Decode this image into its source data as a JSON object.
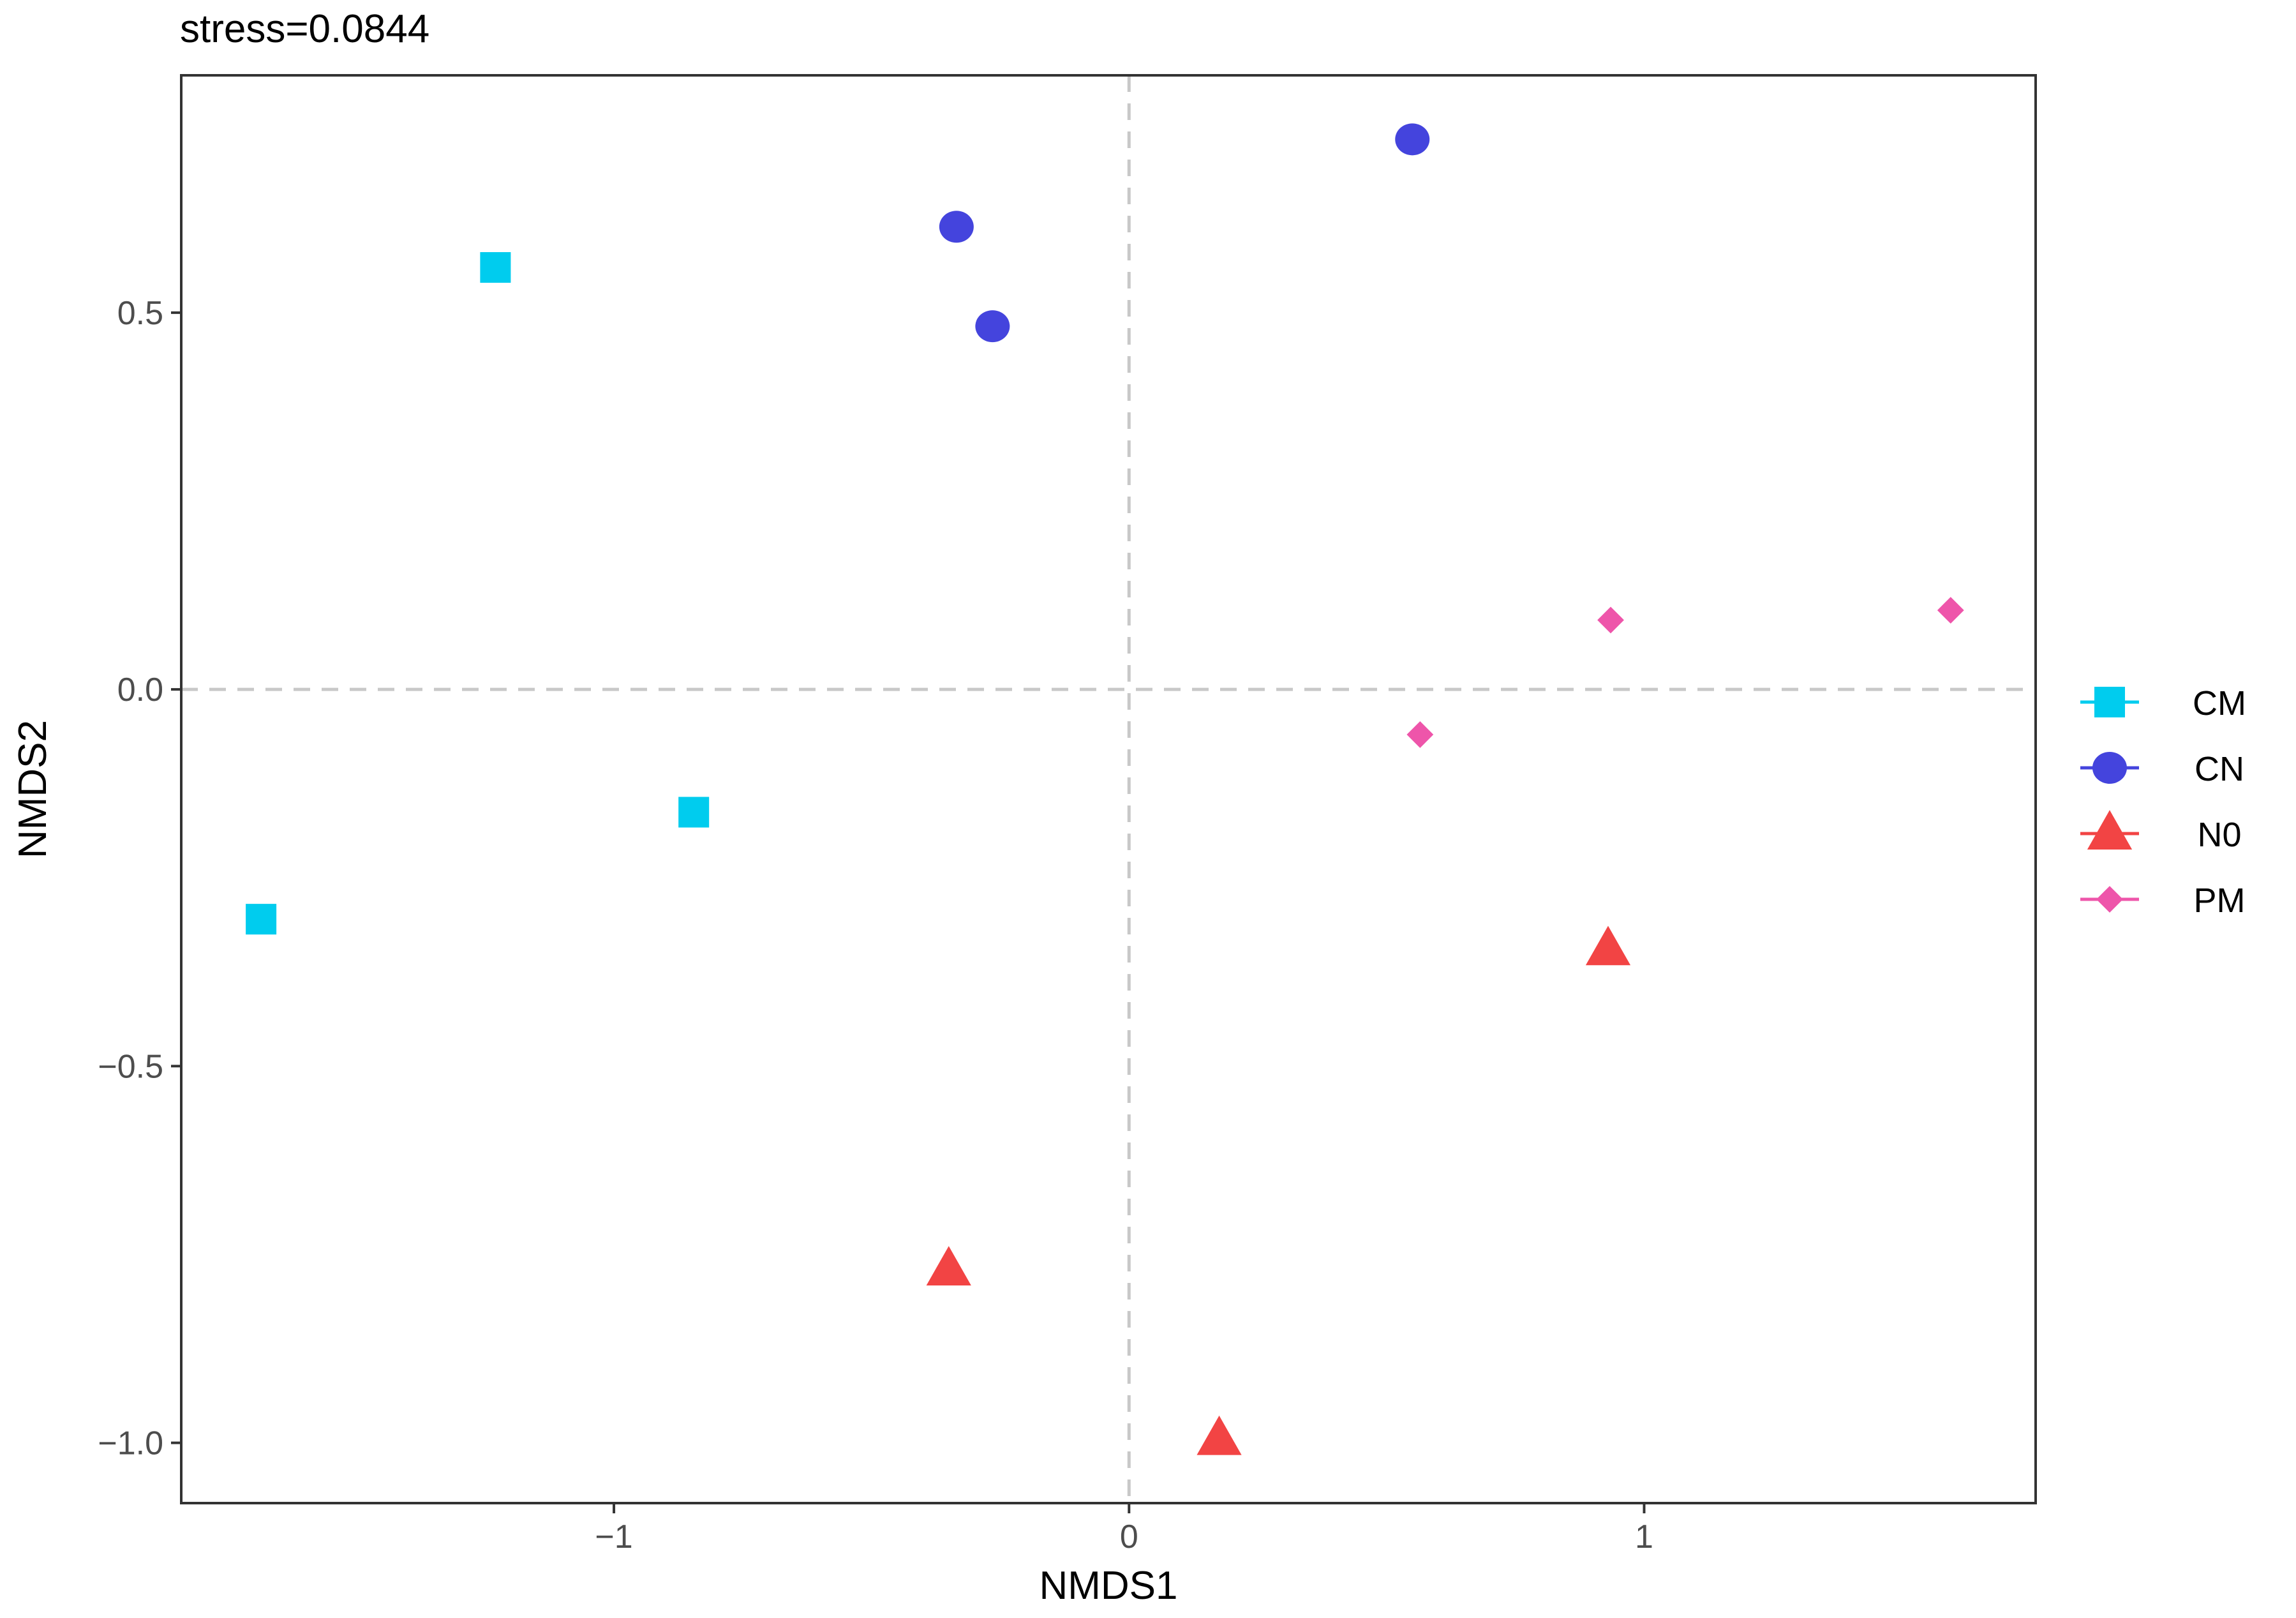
{
  "chart_data": {
    "type": "scatter",
    "title": "stress=0.0844",
    "xlabel": "NMDS1",
    "ylabel": "NMDS2",
    "xlim": [
      -1.84,
      1.76
    ],
    "ylim": [
      -1.08,
      0.815
    ],
    "x_ticks": [
      -1,
      0,
      1
    ],
    "x_tick_labels": [
      "−1",
      "0",
      "1"
    ],
    "y_ticks": [
      -1.0,
      -0.5,
      0.0,
      0.5
    ],
    "y_tick_labels": [
      "−1.0",
      "−0.5",
      "0.0",
      "0.5"
    ],
    "grid": false,
    "reference_lines": {
      "x": 0,
      "y": 0,
      "style": "dashed"
    },
    "legend_position": "right",
    "series": [
      {
        "name": "CM",
        "marker": "square",
        "color": "#00CCEE",
        "x": [
          -1.685,
          -1.23,
          -0.845
        ],
        "y": [
          -0.305,
          0.56,
          -0.163
        ]
      },
      {
        "name": "CN",
        "marker": "circle",
        "color": "#4444DD",
        "x": [
          -0.335,
          -0.265,
          0.55
        ],
        "y": [
          0.614,
          0.482,
          0.73
        ]
      },
      {
        "name": "N0",
        "marker": "triangle",
        "color": "#F24444",
        "x": [
          -0.35,
          0.175,
          0.93
        ],
        "y": [
          -0.77,
          -0.995,
          -0.345
        ]
      },
      {
        "name": "PM",
        "marker": "diamond",
        "color": "#EE55AA",
        "x": [
          0.565,
          0.935,
          1.595
        ],
        "y": [
          -0.06,
          0.092,
          0.105
        ]
      }
    ]
  }
}
